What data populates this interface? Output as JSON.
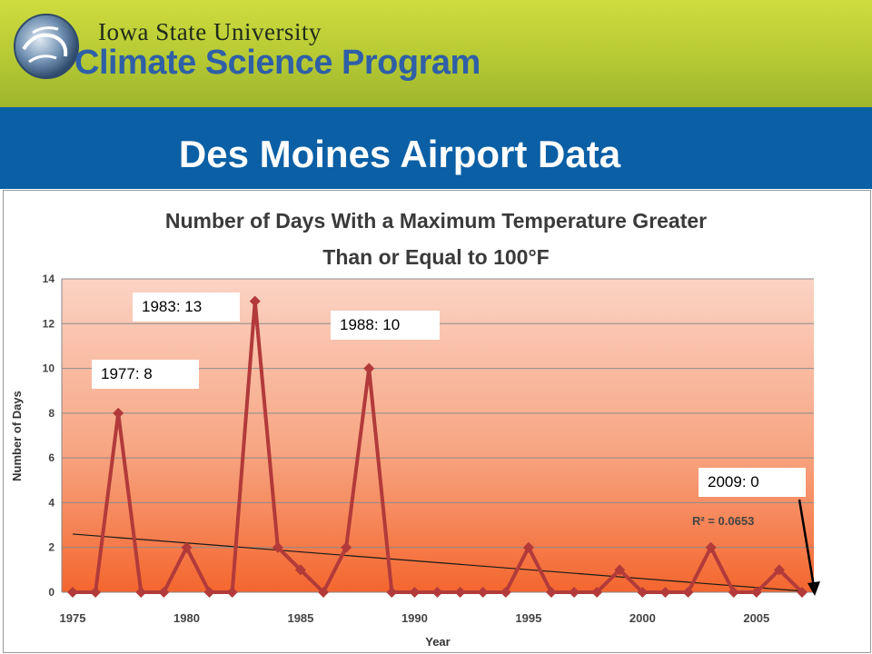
{
  "header": {
    "university": "Iowa State University",
    "program": "Climate Science Program",
    "logo_icon": "globe-swirl-icon"
  },
  "slide": {
    "title": "Des Moines Airport Data"
  },
  "colors": {
    "header_green": "#b5c934",
    "band_blue": "#0a5fa5",
    "program_blue": "#2f5fa6",
    "series_line": "#b23a3a",
    "plot_top": "#fbd3c4",
    "plot_bottom": "#f46a32"
  },
  "chart_data": {
    "type": "line",
    "title_line1": "Number of Days With a Maximum Temperature Greater",
    "title_line2": "Than or Equal to 100°F",
    "xlabel": "Year",
    "ylabel": "Number of Days",
    "xlim": [
      1974.5,
      2008.5
    ],
    "ylim": [
      0,
      14
    ],
    "x_ticks": [
      1975,
      1980,
      1985,
      1990,
      1995,
      2000,
      2005
    ],
    "y_ticks": [
      0,
      2,
      4,
      6,
      8,
      10,
      12,
      14
    ],
    "grid": true,
    "x": [
      1975,
      1976,
      1977,
      1978,
      1979,
      1980,
      1981,
      1982,
      1983,
      1984,
      1985,
      1986,
      1987,
      1988,
      1989,
      1990,
      1991,
      1992,
      1993,
      1994,
      1995,
      1996,
      1997,
      1998,
      1999,
      2000,
      2001,
      2002,
      2003,
      2004,
      2005,
      2006,
      2007
    ],
    "values": [
      0,
      0,
      8,
      0,
      0,
      2,
      0,
      0,
      13,
      2,
      1,
      0,
      2,
      10,
      0,
      0,
      0,
      0,
      0,
      0,
      2,
      0,
      0,
      0,
      1,
      0,
      0,
      0,
      2,
      0,
      0,
      1,
      0
    ],
    "trendline": {
      "x": [
        1975,
        2007
      ],
      "y": [
        2.6,
        0.05
      ],
      "r_squared_label": "R² = 0.0653"
    },
    "annotations": [
      {
        "text": "1983:  13"
      },
      {
        "text": "1988:  10"
      },
      {
        "text": "1977:  8"
      },
      {
        "text": "2009:  0"
      }
    ]
  }
}
